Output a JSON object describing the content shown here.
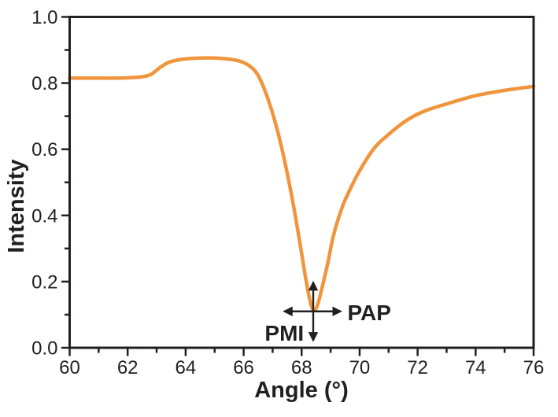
{
  "figure": {
    "background": "#ffffff"
  },
  "chart_data": {
    "type": "line",
    "title": "",
    "xlabel": "Angle (°)",
    "ylabel": "Intensity",
    "xlim": [
      60,
      76
    ],
    "ylim": [
      0.0,
      1.0
    ],
    "grid": false,
    "frame": "box",
    "legend": "none",
    "x_major_ticks": [
      60,
      62,
      64,
      66,
      68,
      70,
      72,
      74,
      76
    ],
    "x_minor_ticks": [
      61,
      63,
      65,
      67,
      69,
      71,
      73,
      75
    ],
    "y_major_tick_labels": [
      "0.0",
      "0.2",
      "0.4",
      "0.6",
      "0.8",
      "1.0"
    ],
    "y_major_ticks": [
      0.0,
      0.2,
      0.4,
      0.6,
      0.8,
      1.0
    ],
    "y_minor_ticks": [
      0.1,
      0.3,
      0.5,
      0.7,
      0.9
    ],
    "series": [
      {
        "name": "intensity-curve",
        "color": "#F0953C",
        "x": [
          60,
          60.5,
          61,
          61.5,
          62,
          62.5,
          62.8,
          63.1,
          63.4,
          63.8,
          64.3,
          64.8,
          65.3,
          65.8,
          66.2,
          66.5,
          66.8,
          67.1,
          67.35,
          67.6,
          67.8,
          68.0,
          68.15,
          68.3,
          68.42,
          68.55,
          68.7,
          68.9,
          69.1,
          69.4,
          69.65,
          70.0,
          70.5,
          71.0,
          71.6,
          72.2,
          73.0,
          74.0,
          75.0,
          76.0
        ],
        "y": [
          0.815,
          0.815,
          0.815,
          0.815,
          0.816,
          0.819,
          0.826,
          0.846,
          0.862,
          0.871,
          0.875,
          0.876,
          0.874,
          0.868,
          0.852,
          0.823,
          0.762,
          0.678,
          0.59,
          0.485,
          0.39,
          0.285,
          0.205,
          0.138,
          0.113,
          0.13,
          0.18,
          0.255,
          0.34,
          0.425,
          0.475,
          0.535,
          0.603,
          0.645,
          0.686,
          0.714,
          0.737,
          0.762,
          0.778,
          0.79
        ]
      }
    ],
    "annotations": {
      "minimum_point": {
        "x": 68.42,
        "y": 0.113
      },
      "vertical_arrow": {
        "x": 68.4,
        "y_from": 0.022,
        "y_to": 0.198
      },
      "horizontal_arrow": {
        "y": 0.11,
        "x_from": 67.4,
        "x_to": 69.35
      },
      "pmi": {
        "text": "PMI",
        "x": 68.08,
        "y": 0.021,
        "anchor": "end"
      },
      "pap": {
        "text": "PAP",
        "x": 69.58,
        "y": 0.083,
        "anchor": "start"
      }
    },
    "colors": {
      "curve": "#F0953C",
      "axis": "#231F20",
      "text": "#231F20",
      "annotation": "#231F20"
    }
  }
}
